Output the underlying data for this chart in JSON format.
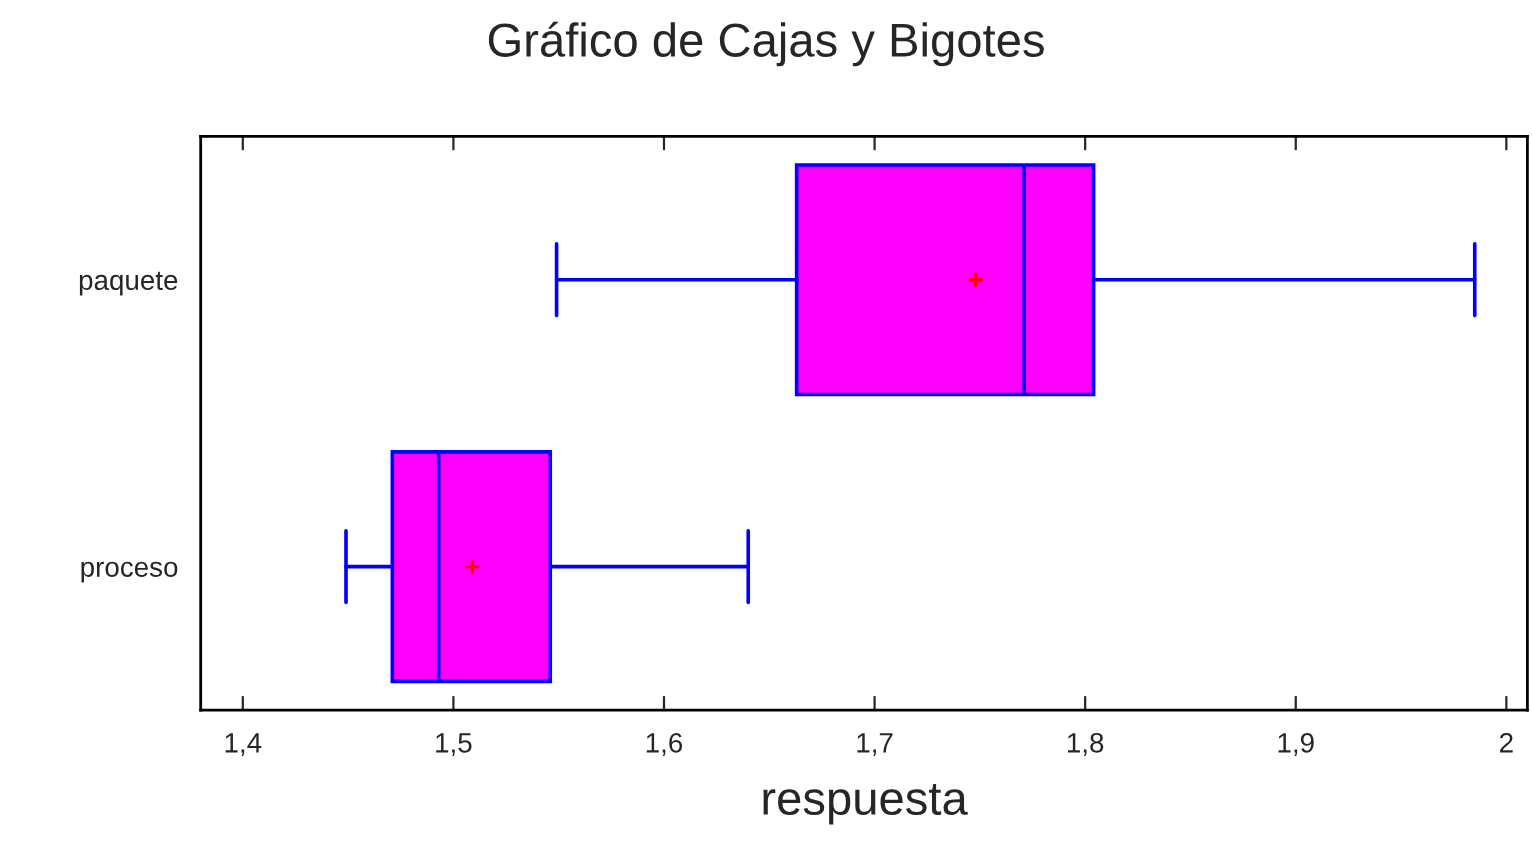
{
  "chart_data": {
    "type": "box",
    "title": "Gráfico de Cajas y Bigotes",
    "xlabel": "respuesta",
    "orientation": "horizontal",
    "categories": [
      "paquete",
      "proceso"
    ],
    "boxes": [
      {
        "low": 1.549,
        "q1": 1.663,
        "median": 1.771,
        "q3": 1.804,
        "high": 1.985,
        "mean": 1.748
      },
      {
        "low": 1.449,
        "q1": 1.471,
        "median": 1.493,
        "q3": 1.546,
        "high": 1.64,
        "mean": 1.509
      }
    ],
    "color": "#ff00ff",
    "xlim": [
      1.38,
      2.01
    ],
    "xticks": [
      {
        "value": 1.4,
        "label": "1,4"
      },
      {
        "value": 1.5,
        "label": "1,5"
      },
      {
        "value": 1.6,
        "label": "1,6"
      },
      {
        "value": 1.7,
        "label": "1,7"
      },
      {
        "value": 1.8,
        "label": "1,8"
      },
      {
        "value": 1.9,
        "label": "1,9"
      },
      {
        "value": 2,
        "label": "2"
      }
    ],
    "grid": false,
    "legend": false
  }
}
